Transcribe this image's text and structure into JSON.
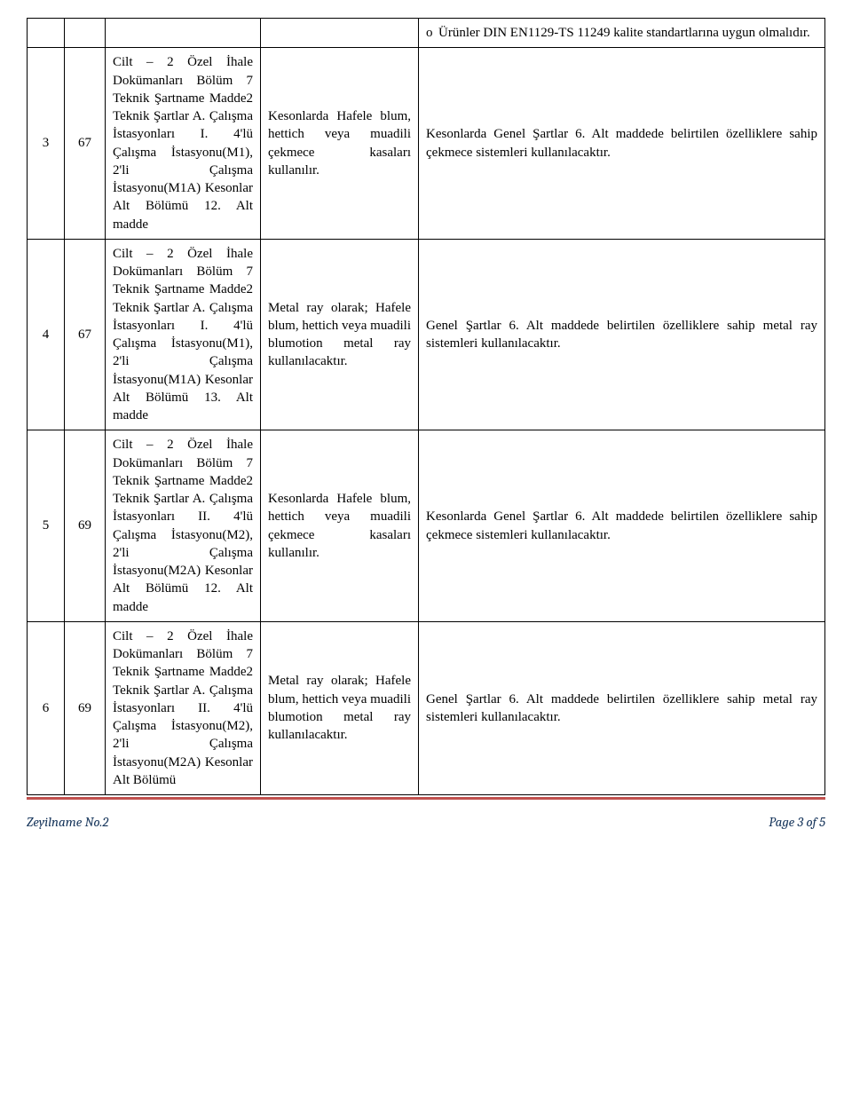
{
  "table": {
    "row0": {
      "col5": "Ürünler DIN EN1129-TS 11249 kalite standartlarına uygun olmalıdır."
    },
    "rows": [
      {
        "c1": "3",
        "c2": "67",
        "c3": "Cilt – 2 Özel İhale Dokümanları Bölüm 7 Teknik Şartname Madde2 Teknik Şartlar A. Çalışma İstasyonları I. 4'lü Çalışma İstasyonu(M1), 2'li Çalışma İstasyonu(M1A) Kesonlar Alt Bölümü 12. Alt madde",
        "c4": "Kesonlarda Hafele blum, hettich veya muadili çekmece kasaları kullanılır.",
        "c5": "Kesonlarda Genel Şartlar 6. Alt maddede belirtilen özelliklere sahip çekmece sistemleri kullanılacaktır."
      },
      {
        "c1": "4",
        "c2": "67",
        "c3": "Cilt – 2 Özel İhale Dokümanları Bölüm 7 Teknik Şartname Madde2 Teknik Şartlar A. Çalışma İstasyonları I. 4'lü Çalışma İstasyonu(M1), 2'li Çalışma İstasyonu(M1A) Kesonlar Alt Bölümü 13. Alt madde",
        "c4": "Metal ray olarak; Hafele blum, hettich veya muadili blumotion metal ray kullanılacaktır.",
        "c5": "Genel Şartlar 6. Alt maddede belirtilen özelliklere sahip metal ray sistemleri kullanılacaktır."
      },
      {
        "c1": "5",
        "c2": "69",
        "c3": "Cilt – 2 Özel İhale Dokümanları Bölüm 7 Teknik Şartname Madde2 Teknik Şartlar A. Çalışma İstasyonları II. 4'lü Çalışma İstasyonu(M2), 2'li Çalışma İstasyonu(M2A) Kesonlar Alt Bölümü 12. Alt madde",
        "c4": "Kesonlarda Hafele blum, hettich veya muadili çekmece kasaları kullanılır.",
        "c5": "Kesonlarda Genel Şartlar 6. Alt maddede belirtilen özelliklere sahip çekmece sistemleri kullanılacaktır."
      },
      {
        "c1": "6",
        "c2": "69",
        "c3": "Cilt – 2 Özel İhale Dokümanları Bölüm 7 Teknik Şartname Madde2 Teknik Şartlar A. Çalışma İstasyonları II. 4'lü Çalışma İstasyonu(M2), 2'li Çalışma İstasyonu(M2A) Kesonlar Alt Bölümü",
        "c4": "Metal ray olarak; Hafele blum, hettich veya muadili blumotion metal ray kullanılacaktır.",
        "c5": "Genel Şartlar 6. Alt maddede belirtilen özelliklere sahip metal ray sistemleri kullanılacaktır."
      }
    ]
  },
  "footer": {
    "left": "Zeyilname No.2",
    "right": "Page 3 of 5"
  }
}
